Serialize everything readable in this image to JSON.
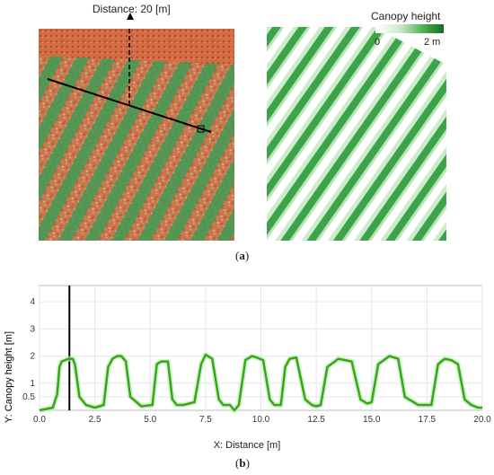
{
  "panel_a": {
    "distance_label": "Distance: 20 [m]",
    "colorbar_title": "Canopy height",
    "colorbar_min": "0",
    "colorbar_max": "2 m",
    "panel_label": "a"
  },
  "panel_b": {
    "panel_label": "b"
  },
  "chart_data": {
    "type": "line",
    "title": "",
    "xlabel": "X: Distance [m]",
    "ylabel": "Y: Canopy height [m]",
    "xlim": [
      0.0,
      20.0
    ],
    "ylim": [
      0,
      4.6
    ],
    "x_ticks": [
      "0.0",
      "2.5",
      "5.0",
      "7.5",
      "10.0",
      "12.5",
      "15.0",
      "17.5",
      "20.0"
    ],
    "y_ticks": [
      "0.5",
      "1",
      "2",
      "3",
      "4"
    ],
    "grid": true,
    "marker_line_x": 1.35,
    "series": [
      {
        "color": "#3aa616",
        "x": [
          0.0,
          0.6,
          0.8,
          0.9,
          1.0,
          1.3,
          1.5,
          1.6,
          1.8,
          2.1,
          2.5,
          2.9,
          3.1,
          3.3,
          3.5,
          3.7,
          3.9,
          4.1,
          4.6,
          5.1,
          5.3,
          5.5,
          5.8,
          6.0,
          6.2,
          6.5,
          7.0,
          7.3,
          7.5,
          7.8,
          8.1,
          8.3,
          8.6,
          8.8,
          9.0,
          9.3,
          9.6,
          9.8,
          10.1,
          10.4,
          10.6,
          10.9,
          11.1,
          11.3,
          11.6,
          12.0,
          12.3,
          12.5,
          12.7,
          13.0,
          13.5,
          14.1,
          14.5,
          14.8,
          15.0,
          15.3,
          15.8,
          16.2,
          16.5,
          16.9,
          17.1,
          17.4,
          17.7,
          18.0,
          18.3,
          18.6,
          18.9,
          19.2,
          19.5,
          19.8,
          20.0
        ],
        "y": [
          0.0,
          0.1,
          0.6,
          1.6,
          1.8,
          1.9,
          1.9,
          1.7,
          0.5,
          0.2,
          0.1,
          0.2,
          1.6,
          1.9,
          2.0,
          2.0,
          1.8,
          0.5,
          0.15,
          0.2,
          1.7,
          1.8,
          1.8,
          0.4,
          0.2,
          0.2,
          0.3,
          1.7,
          2.05,
          1.9,
          0.4,
          0.2,
          0.2,
          0.0,
          0.2,
          1.85,
          2.0,
          1.95,
          1.85,
          0.4,
          0.2,
          0.2,
          1.6,
          1.9,
          1.95,
          0.4,
          0.2,
          0.15,
          0.2,
          1.6,
          1.9,
          1.8,
          0.4,
          0.25,
          0.3,
          1.7,
          2.0,
          1.9,
          0.5,
          0.3,
          0.2,
          0.2,
          0.2,
          1.7,
          1.9,
          1.85,
          1.7,
          0.4,
          0.2,
          0.1,
          0.1
        ]
      }
    ]
  }
}
